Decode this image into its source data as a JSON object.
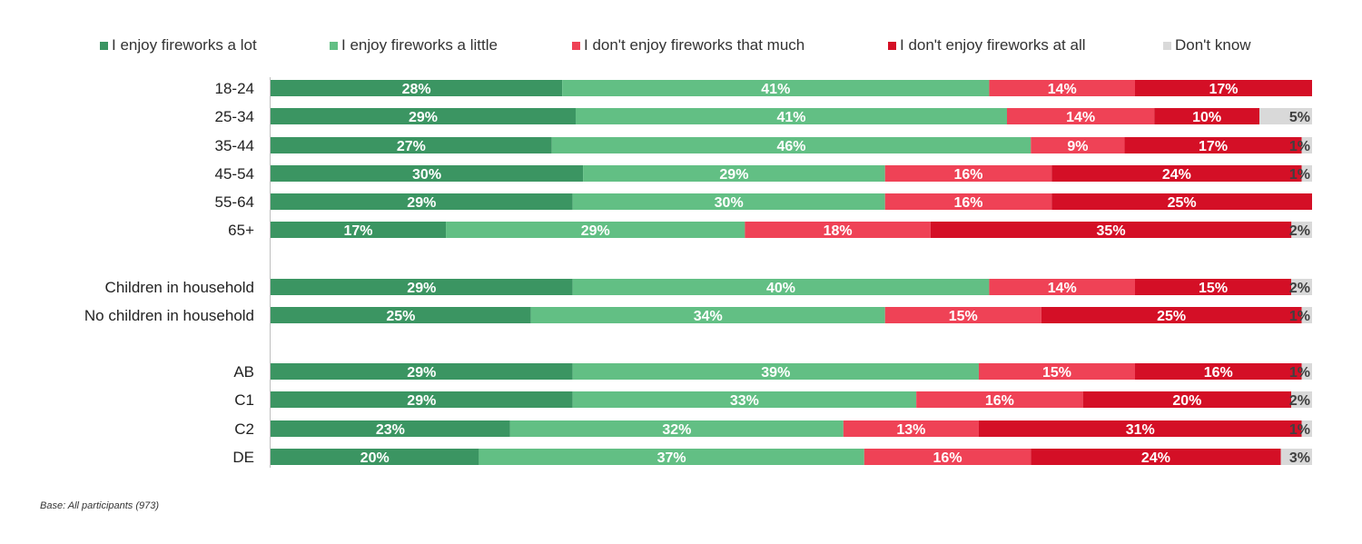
{
  "chart_data": {
    "type": "bar",
    "orientation": "horizontal",
    "stacked": true,
    "categories": [
      "18-24",
      "25-34",
      "35-44",
      "45-54",
      "55-64",
      "65+",
      "Children in household",
      "No children in household",
      "AB",
      "C1",
      "C2",
      "DE"
    ],
    "series": [
      {
        "name": "I enjoy fireworks a lot",
        "color": "#3b9562",
        "values": [
          28,
          29,
          27,
          30,
          29,
          17,
          29,
          25,
          29,
          29,
          23,
          20
        ]
      },
      {
        "name": "I enjoy fireworks a little",
        "color": "#62bf84",
        "values": [
          41,
          41,
          46,
          29,
          30,
          29,
          40,
          34,
          39,
          33,
          32,
          37
        ]
      },
      {
        "name": "I don't enjoy fireworks that much",
        "color": "#ef4256",
        "values": [
          14,
          14,
          9,
          16,
          16,
          18,
          14,
          15,
          15,
          16,
          13,
          16
        ]
      },
      {
        "name": "I don't enjoy fireworks at all",
        "color": "#d40f26",
        "values": [
          17,
          10,
          17,
          24,
          25,
          35,
          15,
          25,
          16,
          20,
          31,
          24
        ]
      },
      {
        "name": "Don't know",
        "color": "#d9d9d9",
        "values": [
          0,
          5,
          1,
          1,
          0,
          2,
          2,
          1,
          1,
          2,
          1,
          3
        ]
      }
    ],
    "unit": "%",
    "legend": "top",
    "grid": false
  },
  "footnote": "Base: All participants (973)"
}
